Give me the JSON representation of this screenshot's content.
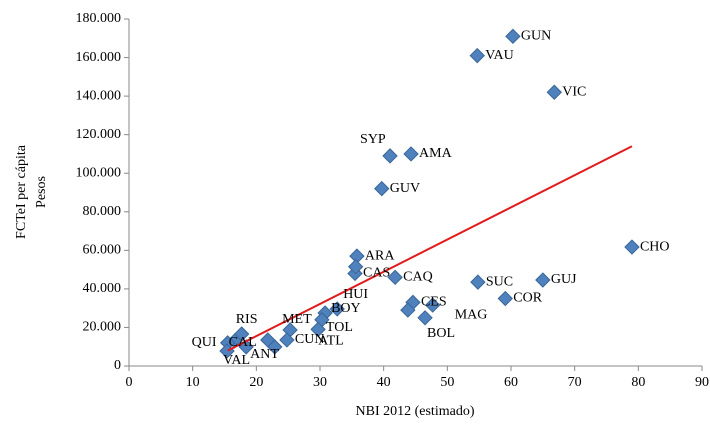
{
  "chart_data": {
    "type": "scatter",
    "xlabel": "NBI 2012 (estimado)",
    "ylabel": [
      "FCTeI per cápita",
      "Pesos"
    ],
    "xlim": [
      0,
      90
    ],
    "xticks": [
      0,
      10,
      20,
      30,
      40,
      50,
      60,
      70,
      80,
      90
    ],
    "ylim": [
      0,
      180000
    ],
    "yticks": [
      0,
      {
        "value": 20000,
        "label": "20.000"
      },
      {
        "value": 40000,
        "label": "40.000"
      },
      {
        "value": 60000,
        "label": "60.000"
      },
      {
        "value": 80000,
        "label": "80.000"
      },
      {
        "value": 100000,
        "label": "100.000"
      },
      {
        "value": 120000,
        "label": "120.000"
      },
      {
        "value": 140000,
        "label": "140.000"
      },
      {
        "value": 160000,
        "label": "160.000"
      },
      {
        "value": 180000,
        "label": "180.000"
      }
    ],
    "series": [
      {
        "color": "#4f81bd",
        "labels": [
          "GUN",
          "VAU",
          "VIC",
          "SYP",
          "AMA",
          "GUV",
          "CHO",
          "ARA",
          "CAS",
          null,
          "CAQ",
          "SUC",
          "GUJ",
          "COR",
          "CES",
          "MAG",
          "BOL",
          null,
          "HUI",
          "BOY",
          "TOL",
          "ATL",
          "MET",
          "CUN",
          "RIS",
          "CAL",
          "QUI",
          "VAL",
          "ANT",
          null,
          null
        ],
        "x": [
          60.3,
          54.7,
          66.8,
          41.0,
          44.3,
          39.7,
          79.0,
          35.8,
          35.5,
          35.6,
          41.8,
          54.8,
          65.0,
          59.1,
          44.6,
          47.7,
          46.5,
          43.8,
          32.7,
          30.8,
          30.3,
          29.7,
          25.3,
          24.8,
          17.7,
          16.6,
          15.5,
          15.4,
          18.4,
          21.8,
          22.9
        ],
        "values": [
          171000,
          161000,
          142000,
          109000,
          110000,
          92000,
          61700,
          57000,
          48000,
          51500,
          46000,
          43500,
          44600,
          35000,
          33000,
          31600,
          25000,
          29000,
          29600,
          27500,
          24000,
          19000,
          18700,
          13500,
          16600,
          13000,
          12000,
          7800,
          9900,
          13500,
          9900
        ]
      }
    ],
    "trendline": {
      "color": "#e31a1c",
      "x": [
        15.5,
        79
      ],
      "values": [
        8000,
        114000
      ]
    }
  }
}
